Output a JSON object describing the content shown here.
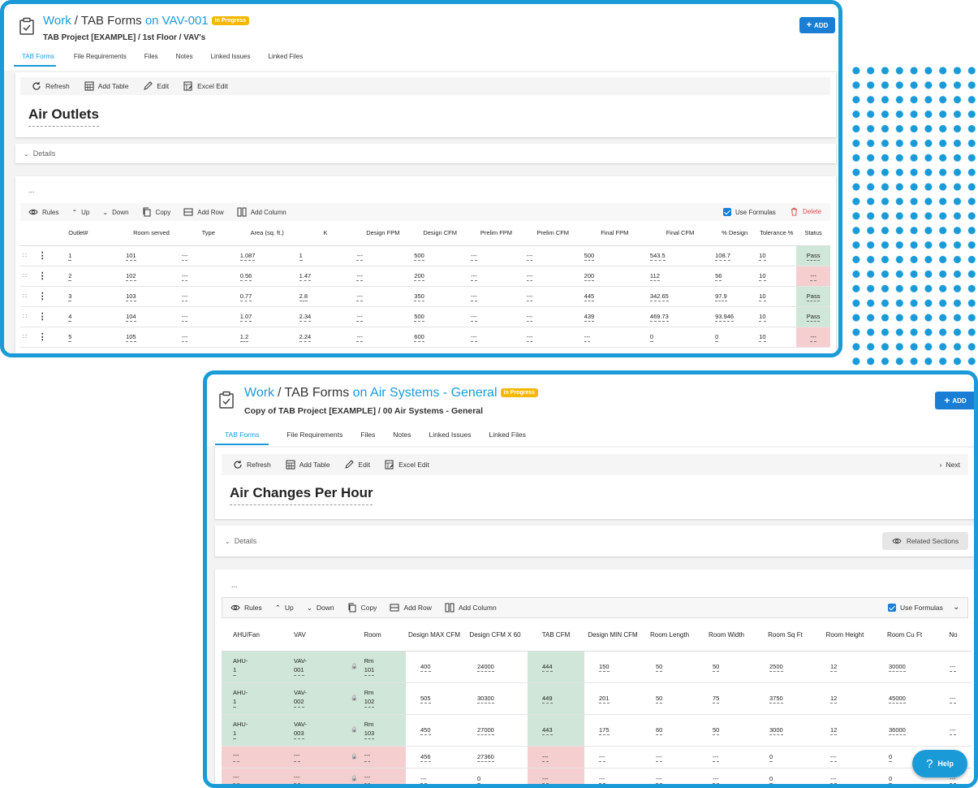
{
  "top": {
    "crumb_work": "Work",
    "crumb_sep": "/",
    "crumb_forms": "TAB Forms",
    "crumb_on": "on VAV-001",
    "badge": "In Progress",
    "subtitle": "TAB Project [EXAMPLE] / 1st Floor / VAV's",
    "add_label": "ADD",
    "tabs": [
      "TAB Forms",
      "File Requirements",
      "Files",
      "Notes",
      "Linked Issues",
      "Linked Files"
    ],
    "toolbar": {
      "refresh": "Refresh",
      "add_table": "Add Table",
      "edit": "Edit",
      "excel_edit": "Excel Edit"
    },
    "section_title": "Air Outlets",
    "details": "Details",
    "ellipsis": "...",
    "grid_toolbar": {
      "rules": "Rules",
      "up": "Up",
      "down": "Down",
      "copy": "Copy",
      "add_row": "Add Row",
      "add_column": "Add Column",
      "use_formulas": "Use Formulas",
      "delete": "Delete"
    },
    "columns": [
      "Outlet#",
      "Room served",
      "Type",
      "Area (sq. ft.)",
      "K",
      "Design FPM",
      "Design CFM",
      "Prelim FPM",
      "Prelim CFM",
      "Final FPM",
      "Final CFM",
      "% Design",
      "Tolerance %",
      "Status"
    ],
    "rows": [
      {
        "cells": [
          "1",
          "101",
          "---",
          "1.087",
          "1",
          "---",
          "500",
          "---",
          "---",
          "500",
          "543.5",
          "108.7",
          "10"
        ],
        "status": "Pass",
        "ok": true
      },
      {
        "cells": [
          "2",
          "102",
          "---",
          "0.56",
          "1.47",
          "---",
          "200",
          "---",
          "---",
          "200",
          "112",
          "56",
          "10"
        ],
        "status": "---",
        "ok": false
      },
      {
        "cells": [
          "3",
          "103",
          "---",
          "0.77",
          "2.8",
          "---",
          "350",
          "---",
          "---",
          "445",
          "342.65",
          "97.9",
          "10"
        ],
        "status": "Pass",
        "ok": true
      },
      {
        "cells": [
          "4",
          "104",
          "---",
          "1.07",
          "2.34",
          "---",
          "500",
          "---",
          "---",
          "439",
          "469.73",
          "93.946",
          "10"
        ],
        "status": "Pass",
        "ok": true
      },
      {
        "cells": [
          "5",
          "105",
          "---",
          "1.2",
          "2.24",
          "---",
          "600",
          "---",
          "---",
          "---",
          "0",
          "0",
          "10"
        ],
        "status": "---",
        "ok": false
      }
    ]
  },
  "bottom": {
    "crumb_work": "Work",
    "crumb_sep": "/",
    "crumb_forms": "TAB Forms",
    "crumb_on": "on Air Systems - General",
    "badge": "In Progress",
    "subtitle": "Copy of TAB Project [EXAMPLE] / 00 Air Systems - General",
    "add_label": "ADD",
    "tabs": [
      "TAB Forms",
      "File Requirements",
      "Files",
      "Notes",
      "Linked Issues",
      "Linked Files"
    ],
    "toolbar": {
      "refresh": "Refresh",
      "add_table": "Add Table",
      "edit": "Edit",
      "excel_edit": "Excel Edit",
      "next": "Next"
    },
    "section_title": "Air Changes Per Hour",
    "details": "Details",
    "related": "Related Sections",
    "ellipsis": "...",
    "grid_toolbar": {
      "rules": "Rules",
      "up": "Up",
      "down": "Down",
      "copy": "Copy",
      "add_row": "Add Row",
      "add_column": "Add Column",
      "use_formulas": "Use Formulas"
    },
    "columns": [
      "AHU/Fan",
      "VAV",
      "Room",
      "Design MAX CFM",
      "Design CFM X 60",
      "TAB CFM",
      "Design MIN CFM",
      "Room Length",
      "Room Width",
      "Room Sq Ft",
      "Room Height",
      "Room Cu Ft",
      "No"
    ],
    "rows": [
      {
        "ahu": [
          "AHU-",
          "1"
        ],
        "vav": [
          "VAV-",
          "001"
        ],
        "room": [
          "Rm",
          "101"
        ],
        "cells": [
          "400",
          "24000",
          "444",
          "150",
          "50",
          "50",
          "2500",
          "12",
          "30000",
          "---"
        ],
        "ok": true
      },
      {
        "ahu": [
          "AHU-",
          "1"
        ],
        "vav": [
          "VAV-",
          "002"
        ],
        "room": [
          "Rm",
          "102"
        ],
        "cells": [
          "505",
          "30300",
          "449",
          "201",
          "50",
          "75",
          "3750",
          "12",
          "45000",
          "---"
        ],
        "ok": true
      },
      {
        "ahu": [
          "AHU-",
          "1"
        ],
        "vav": [
          "VAV-",
          "003"
        ],
        "room": [
          "Rm",
          "103"
        ],
        "cells": [
          "450",
          "27000",
          "443",
          "175",
          "60",
          "50",
          "3000",
          "12",
          "36000",
          "---"
        ],
        "ok": true
      },
      {
        "ahu": [
          "---",
          ""
        ],
        "vav": [
          "---",
          ""
        ],
        "room": [
          "---",
          ""
        ],
        "cells": [
          "456",
          "27360",
          "---",
          "---",
          "---",
          "---",
          "0",
          "---",
          "0",
          "---"
        ],
        "ok": false
      },
      {
        "ahu": [
          "---",
          ""
        ],
        "vav": [
          "---",
          ""
        ],
        "room": [
          "---",
          ""
        ],
        "cells": [
          "---",
          "0",
          "---",
          "---",
          "---",
          "---",
          "0",
          "---",
          "0",
          "---"
        ],
        "ok": false
      }
    ]
  },
  "help": "Help",
  "colors": {
    "accent": "#1a9bd7",
    "badge": "#f5b800",
    "pass": "#cfe6d8",
    "fail": "#f5cfd0",
    "primary_button": "#1a7fd4"
  }
}
